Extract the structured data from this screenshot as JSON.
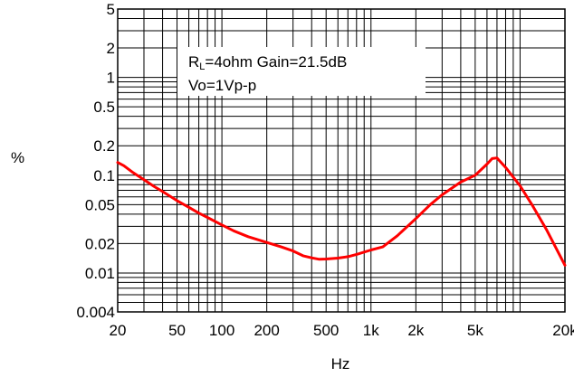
{
  "chart_data": {
    "type": "line",
    "xscale": "log",
    "yscale": "log",
    "xlim": [
      20,
      20000
    ],
    "ylim": [
      0.004,
      5
    ],
    "grid": true,
    "xlabel": "Hz",
    "ylabel": "%",
    "x_ticks": [
      {
        "value": 20,
        "label": "20"
      },
      {
        "value": 50,
        "label": "50"
      },
      {
        "value": 100,
        "label": "100"
      },
      {
        "value": 200,
        "label": "200"
      },
      {
        "value": 500,
        "label": "500"
      },
      {
        "value": 1000,
        "label": "1k"
      },
      {
        "value": 2000,
        "label": "2k"
      },
      {
        "value": 5000,
        "label": "5k"
      },
      {
        "value": 20000,
        "label": "20k"
      }
    ],
    "y_ticks": [
      {
        "value": 0.004,
        "label": "0.004"
      },
      {
        "value": 0.01,
        "label": "0.01"
      },
      {
        "value": 0.02,
        "label": "0.02"
      },
      {
        "value": 0.05,
        "label": "0.05"
      },
      {
        "value": 0.1,
        "label": "0.1"
      },
      {
        "value": 0.2,
        "label": "0.2"
      },
      {
        "value": 0.5,
        "label": "0.5"
      },
      {
        "value": 1,
        "label": "1"
      },
      {
        "value": 2,
        "label": "2"
      },
      {
        "value": 5,
        "label": "5"
      }
    ],
    "annotation": {
      "line1_prefix": "R",
      "line1_sub": "L",
      "line1_rest": "=4ohm Gain=21.5dB",
      "line2": "Vo=1Vp-p"
    },
    "series": [
      {
        "color": "#ff0000",
        "x": [
          20,
          22,
          25,
          30,
          35,
          40,
          50,
          60,
          70,
          80,
          100,
          120,
          150,
          200,
          250,
          300,
          350,
          400,
          450,
          500,
          600,
          700,
          800,
          1000,
          1200,
          1500,
          2000,
          2500,
          3000,
          4000,
          5000,
          6000,
          6500,
          7000,
          8000,
          10000,
          12000,
          15000,
          20000
        ],
        "y": [
          0.135,
          0.125,
          0.108,
          0.09,
          0.077,
          0.068,
          0.055,
          0.047,
          0.041,
          0.037,
          0.031,
          0.027,
          0.0235,
          0.0205,
          0.0185,
          0.0168,
          0.015,
          0.0143,
          0.0138,
          0.0139,
          0.0142,
          0.0147,
          0.0155,
          0.0172,
          0.0185,
          0.024,
          0.036,
          0.05,
          0.063,
          0.085,
          0.1,
          0.13,
          0.148,
          0.15,
          0.12,
          0.078,
          0.05,
          0.028,
          0.012
        ]
      }
    ]
  }
}
